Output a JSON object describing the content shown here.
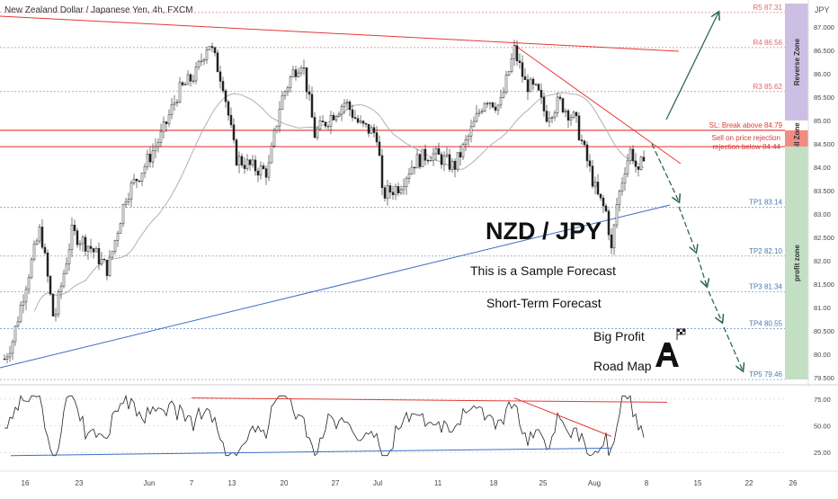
{
  "chart_data": {
    "type": "candlestick",
    "title": "New Zealand Dollar / Japanese Yen, 4h, FXCM",
    "currency_label": "JPY",
    "y_axis": {
      "range": [
        79.5,
        87.5
      ],
      "ticks": [
        "87.000",
        "86.500",
        "86.00",
        "85.500",
        "85.00",
        "84.500",
        "84.00",
        "83.500",
        "83.00",
        "82.500",
        "82.00",
        "81.500",
        "81.00",
        "80.500",
        "80.00",
        "79.500"
      ],
      "tick_values": [
        87.0,
        86.5,
        86.0,
        85.5,
        85.0,
        84.5,
        84.0,
        83.5,
        83.0,
        82.5,
        82.0,
        81.5,
        81.0,
        80.5,
        80.0,
        79.5
      ]
    },
    "x_axis": {
      "ticks": [
        "16",
        "23",
        "Jun",
        "7",
        "13",
        "20",
        "27",
        "Jul",
        "11",
        "18",
        "25",
        "Aug",
        "8",
        "15",
        "22",
        "26"
      ]
    },
    "price_path_key_points": [
      {
        "x_label": "16",
        "price": 79.9
      },
      {
        "x_label": "23",
        "price": 82.4
      },
      {
        "x_label": "Jun",
        "price": 84.6
      },
      {
        "x_label": "7",
        "price": 86.7
      },
      {
        "x_label": "13",
        "price": 84.1
      },
      {
        "x_label": "20",
        "price": 86.3
      },
      {
        "x_label": "27",
        "price": 85.0
      },
      {
        "x_label": "Jul",
        "price": 83.4
      },
      {
        "x_label": "11",
        "price": 83.8
      },
      {
        "x_label": "18",
        "price": 86.5
      },
      {
        "x_label": "25",
        "price": 85.3
      },
      {
        "x_label": "Aug",
        "price": 82.2
      },
      {
        "x_label": "8",
        "price": 84.3
      }
    ],
    "levels": [
      {
        "label": "R5 87.31",
        "value": 87.31,
        "color": "#e06666"
      },
      {
        "label": "R4 86.56",
        "value": 86.56,
        "color": "#e06666"
      },
      {
        "label": "R3 85.62",
        "value": 85.62,
        "color": "#e06666"
      },
      {
        "label": "SL: Break above 84.79",
        "value": 84.79,
        "color": "#e53935"
      },
      {
        "label": "Sell on price rejection below 84.44",
        "value": 84.44,
        "color": "#e53935"
      },
      {
        "label": "TP1 83.14",
        "value": 83.14,
        "color": "#4a7ab8"
      },
      {
        "label": "TP2 82.10",
        "value": 82.1,
        "color": "#4a7ab8"
      },
      {
        "label": "TP3 81.34",
        "value": 81.34,
        "color": "#4a7ab8"
      },
      {
        "label": "TP4 80.55",
        "value": 80.55,
        "color": "#4a7ab8"
      },
      {
        "label": "TP5 79.46",
        "value": 79.46,
        "color": "#4a7ab8"
      }
    ],
    "zones": [
      {
        "label": "Reverse Zone",
        "from": 85.0,
        "to": 87.5,
        "color": "#cdbfe3"
      },
      {
        "label": "Sell Zone",
        "from": 84.44,
        "to": 84.79,
        "color": "#f28b82"
      },
      {
        "label": "profit zone",
        "from": 79.46,
        "to": 84.44,
        "color": "#c2dfc4"
      }
    ],
    "annotations": {
      "pair": "NZD / JPY",
      "sample": "This is a Sample Forecast",
      "short_term": "Short-Term Forecast",
      "big_profit": "Big Profit",
      "road_map": "Road Map"
    },
    "oscillator": {
      "ticks": [
        "75.00",
        "50.00",
        "25.00"
      ],
      "tick_values": [
        75,
        50,
        25
      ]
    },
    "colors": {
      "bull": "#26a69a",
      "bear": "#ef5350",
      "ma": "#b0b0b0",
      "resistance_line": "#e53935",
      "support_line": "#3a6fc4",
      "forecast_arrow": "#2e6b4f"
    }
  }
}
